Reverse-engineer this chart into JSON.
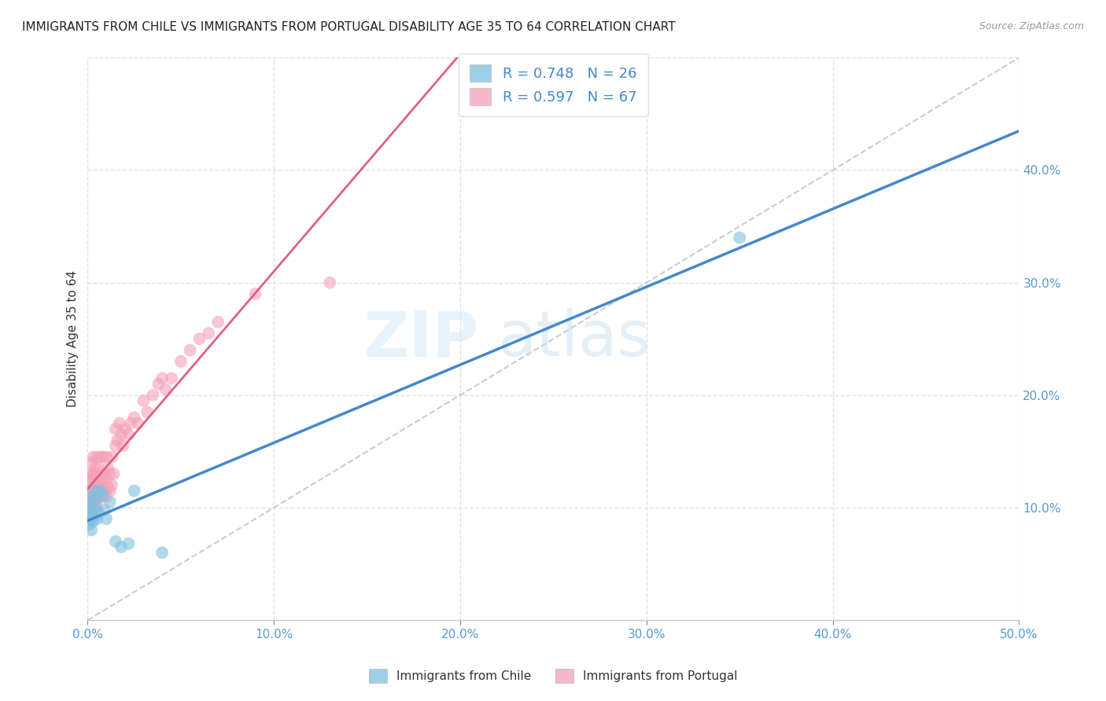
{
  "title": "IMMIGRANTS FROM CHILE VS IMMIGRANTS FROM PORTUGAL DISABILITY AGE 35 TO 64 CORRELATION CHART",
  "source": "Source: ZipAtlas.com",
  "ylabel": "Disability Age 35 to 64",
  "xlim": [
    0.0,
    0.5
  ],
  "ylim": [
    0.0,
    0.5
  ],
  "chile_color": "#7fbfdf",
  "portugal_color": "#f4a0b8",
  "chile_line_color": "#4488cc",
  "portugal_line_color": "#e06080",
  "diag_color": "#cccccc",
  "chile_R": 0.748,
  "chile_N": 26,
  "portugal_R": 0.597,
  "portugal_N": 67,
  "legend_label_chile": "Immigrants from Chile",
  "legend_label_portugal": "Immigrants from Portugal",
  "grid_color": "#e0e0e0",
  "tick_color": "#5599cc",
  "ylabel_color": "#333333",
  "chile_x": [
    0.0005,
    0.001,
    0.001,
    0.0015,
    0.002,
    0.002,
    0.002,
    0.003,
    0.003,
    0.003,
    0.004,
    0.004,
    0.005,
    0.005,
    0.006,
    0.007,
    0.008,
    0.009,
    0.01,
    0.012,
    0.015,
    0.018,
    0.022,
    0.025,
    0.04,
    0.35
  ],
  "chile_y": [
    0.095,
    0.085,
    0.1,
    0.09,
    0.08,
    0.11,
    0.095,
    0.092,
    0.105,
    0.088,
    0.1,
    0.115,
    0.09,
    0.108,
    0.095,
    0.115,
    0.112,
    0.098,
    0.09,
    0.105,
    0.07,
    0.065,
    0.068,
    0.115,
    0.06,
    0.34
  ],
  "portugal_x": [
    0.0005,
    0.001,
    0.001,
    0.001,
    0.0015,
    0.0015,
    0.002,
    0.002,
    0.002,
    0.002,
    0.003,
    0.003,
    0.003,
    0.003,
    0.004,
    0.004,
    0.004,
    0.005,
    0.005,
    0.005,
    0.005,
    0.006,
    0.006,
    0.006,
    0.007,
    0.007,
    0.007,
    0.008,
    0.008,
    0.008,
    0.009,
    0.009,
    0.01,
    0.01,
    0.01,
    0.011,
    0.011,
    0.012,
    0.012,
    0.013,
    0.013,
    0.014,
    0.015,
    0.015,
    0.016,
    0.017,
    0.018,
    0.019,
    0.02,
    0.022,
    0.023,
    0.025,
    0.027,
    0.03,
    0.032,
    0.035,
    0.038,
    0.04,
    0.042,
    0.045,
    0.05,
    0.055,
    0.06,
    0.065,
    0.07,
    0.09,
    0.13
  ],
  "portugal_y": [
    0.105,
    0.1,
    0.115,
    0.125,
    0.095,
    0.13,
    0.105,
    0.115,
    0.125,
    0.14,
    0.1,
    0.115,
    0.13,
    0.145,
    0.11,
    0.12,
    0.135,
    0.1,
    0.118,
    0.13,
    0.145,
    0.108,
    0.12,
    0.135,
    0.115,
    0.125,
    0.145,
    0.11,
    0.125,
    0.145,
    0.115,
    0.13,
    0.11,
    0.125,
    0.145,
    0.118,
    0.135,
    0.115,
    0.13,
    0.12,
    0.145,
    0.13,
    0.155,
    0.17,
    0.16,
    0.175,
    0.165,
    0.155,
    0.17,
    0.165,
    0.175,
    0.18,
    0.175,
    0.195,
    0.185,
    0.2,
    0.21,
    0.215,
    0.205,
    0.215,
    0.23,
    0.24,
    0.25,
    0.255,
    0.265,
    0.29,
    0.3
  ]
}
